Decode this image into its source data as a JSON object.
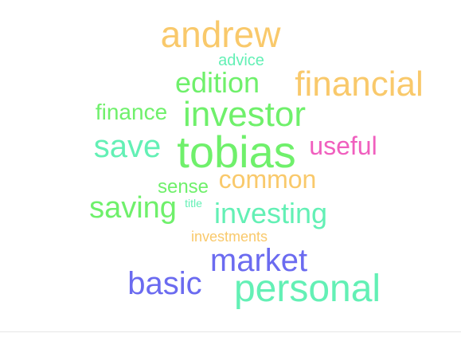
{
  "palette": {
    "orange": "#f9c96b",
    "green": "#6ff06b",
    "teal": "#63f0b5",
    "pink": "#f05fbe",
    "blue": "#6b6bf0"
  },
  "words": [
    {
      "text": "andrew",
      "color": "#f9c96b"
    },
    {
      "text": "advice",
      "color": "#63f0b5"
    },
    {
      "text": "edition",
      "color": "#6ff06b"
    },
    {
      "text": "financial",
      "color": "#f9c96b"
    },
    {
      "text": "finance",
      "color": "#6ff06b"
    },
    {
      "text": "investor",
      "color": "#6ff06b"
    },
    {
      "text": "save",
      "color": "#63f0b5"
    },
    {
      "text": "tobias",
      "color": "#6ff06b"
    },
    {
      "text": "useful",
      "color": "#f05fbe"
    },
    {
      "text": "sense",
      "color": "#6ff06b"
    },
    {
      "text": "common",
      "color": "#f9c96b"
    },
    {
      "text": "saving",
      "color": "#6ff06b"
    },
    {
      "text": "title",
      "color": "#63f0b5"
    },
    {
      "text": "investing",
      "color": "#63f0b5"
    },
    {
      "text": "investments",
      "color": "#f9c96b"
    },
    {
      "text": "market",
      "color": "#6b6bf0"
    },
    {
      "text": "basic",
      "color": "#6b6bf0"
    },
    {
      "text": "personal",
      "color": "#63f0b5"
    }
  ]
}
